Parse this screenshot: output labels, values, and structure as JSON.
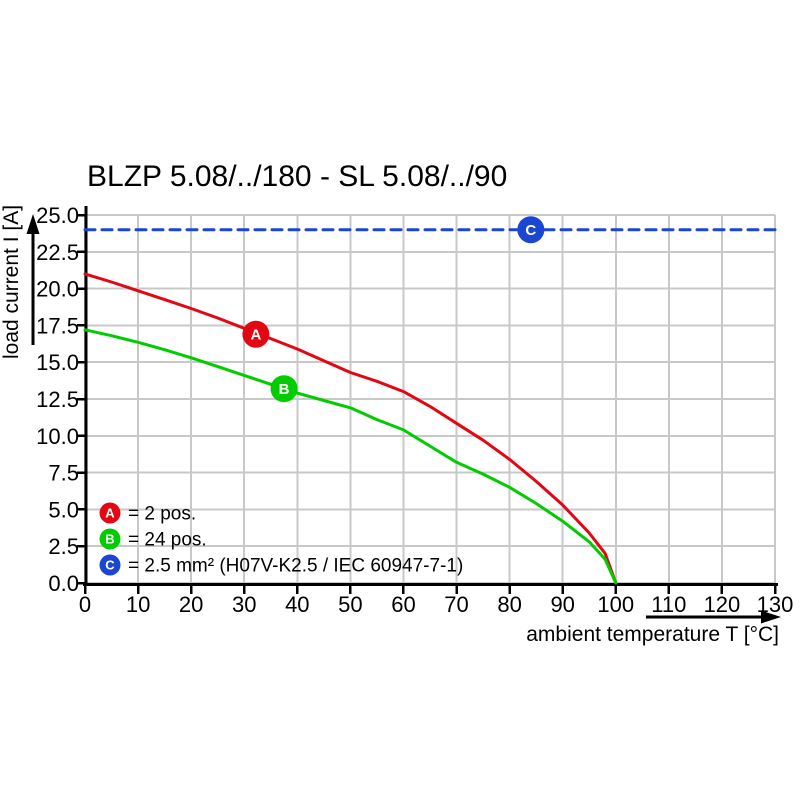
{
  "window": {
    "background": "#ffffff"
  },
  "chart_data": {
    "type": "line",
    "title": "BLZP 5.08/../180 - SL 5.08/../90",
    "xlabel": "ambient temperature T [°C]",
    "ylabel": "load current I [A]",
    "xlim": [
      0,
      130
    ],
    "ylim": [
      0,
      25
    ],
    "x_ticks": [
      0,
      10,
      20,
      30,
      40,
      50,
      60,
      70,
      80,
      90,
      100,
      110,
      120,
      130
    ],
    "y_tick_labels": [
      "0.0",
      "2.5",
      "5.0",
      "7.5",
      "10.0",
      "12.5",
      "15.0",
      "17.5",
      "20.0",
      "22.5",
      "25.0"
    ],
    "grid": true,
    "legend_position": "inside-bottom-left",
    "colors": {
      "axis": "#000000",
      "grid": "#c8c8c8",
      "series_a": "#e30613",
      "series_b": "#00cc00",
      "series_c": "#1a46d2"
    },
    "series": [
      {
        "id": "A",
        "label": "2 pos.",
        "color": "#e30613",
        "line_style": "solid",
        "points": [
          [
            0,
            21.0
          ],
          [
            5,
            20.45
          ],
          [
            10,
            19.85
          ],
          [
            15,
            19.25
          ],
          [
            20,
            18.65
          ],
          [
            25,
            18.0
          ],
          [
            30,
            17.3
          ],
          [
            35,
            16.6
          ],
          [
            40,
            15.9
          ],
          [
            45,
            15.1
          ],
          [
            50,
            14.3
          ],
          [
            55,
            13.7
          ],
          [
            60,
            13.0
          ],
          [
            65,
            12.0
          ],
          [
            70,
            10.85
          ],
          [
            75,
            9.7
          ],
          [
            80,
            8.4
          ],
          [
            85,
            6.9
          ],
          [
            90,
            5.3
          ],
          [
            95,
            3.4
          ],
          [
            98,
            2.0
          ],
          [
            100,
            0
          ]
        ],
        "marker": {
          "letter": "A",
          "x": 32.2,
          "y": 16.9
        }
      },
      {
        "id": "B",
        "label": "24 pos.",
        "color": "#00cc00",
        "line_style": "solid",
        "points": [
          [
            0,
            17.2
          ],
          [
            5,
            16.8
          ],
          [
            10,
            16.35
          ],
          [
            15,
            15.85
          ],
          [
            20,
            15.3
          ],
          [
            25,
            14.7
          ],
          [
            30,
            14.1
          ],
          [
            35,
            13.5
          ],
          [
            40,
            12.9
          ],
          [
            45,
            12.4
          ],
          [
            50,
            11.9
          ],
          [
            55,
            11.1
          ],
          [
            60,
            10.4
          ],
          [
            65,
            9.3
          ],
          [
            70,
            8.2
          ],
          [
            75,
            7.4
          ],
          [
            80,
            6.5
          ],
          [
            85,
            5.4
          ],
          [
            90,
            4.2
          ],
          [
            95,
            2.8
          ],
          [
            98,
            1.6
          ],
          [
            100,
            0
          ]
        ],
        "marker": {
          "letter": "B",
          "x": 37.5,
          "y": 13.2
        }
      },
      {
        "id": "C",
        "label": "2.5 mm² (H07V-K2.5 / IEC 60947-7-1)",
        "color": "#1a46d2",
        "line_style": "dashed",
        "points": [
          [
            0,
            24
          ],
          [
            130,
            24
          ]
        ],
        "marker": {
          "letter": "C",
          "x": 84,
          "y": 24
        }
      }
    ],
    "legend": [
      {
        "letter": "A",
        "color": "#e30613",
        "text": "= 2 pos."
      },
      {
        "letter": "B",
        "color": "#00cc00",
        "text": "= 24 pos."
      },
      {
        "letter": "C",
        "color": "#1a46d2",
        "text": "= 2.5 mm² (H07V-K2.5 / IEC 60947-7-1)"
      }
    ]
  }
}
